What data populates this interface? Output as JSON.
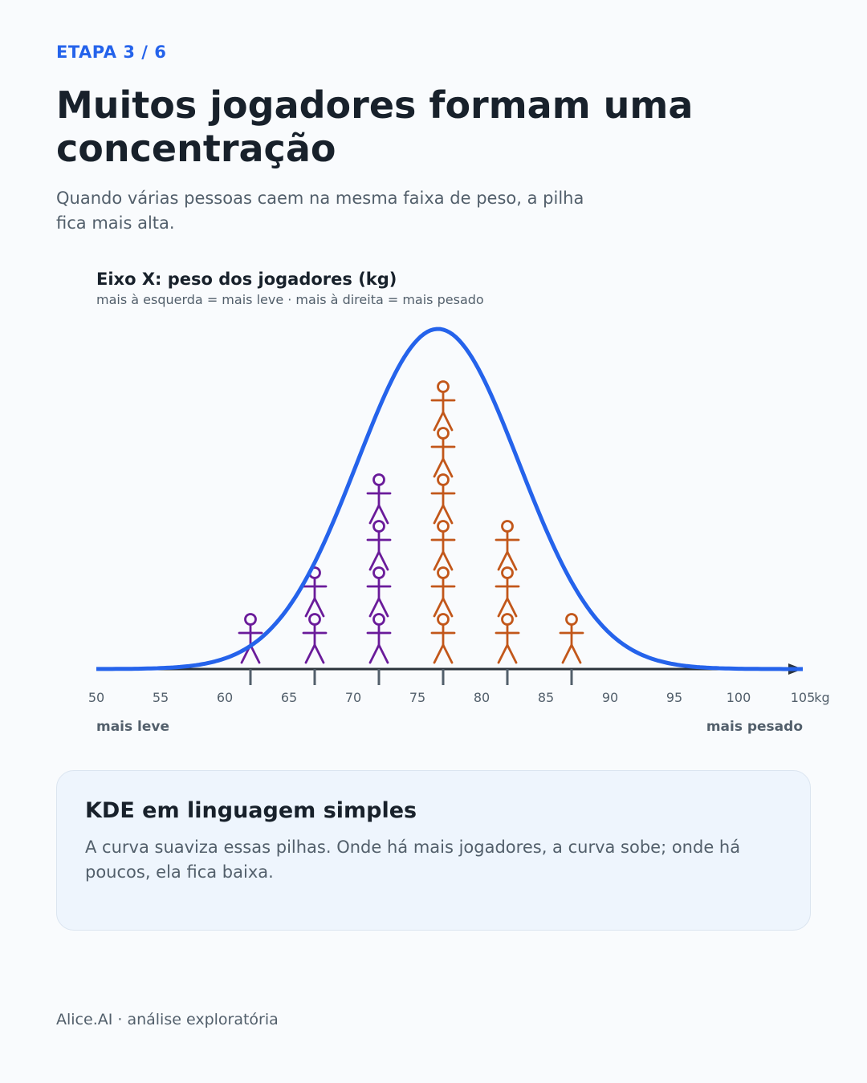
{
  "header": {
    "step": "ETAPA 3 / 6",
    "title": "Muitos jogadores formam uma concentração",
    "subtitle": "Quando várias pessoas caem na mesma faixa de peso, a pilha fica mais alta."
  },
  "chart_data": {
    "type": "dot-plot-with-kde",
    "axis_title": "Eixo X: peso dos jogadores (kg)",
    "axis_subtitle": "mais à esquerda = mais leve · mais à direita = mais pesado",
    "xlim": [
      50,
      105
    ],
    "x_ticks": [
      50,
      55,
      60,
      65,
      70,
      75,
      80,
      85,
      90,
      95,
      100,
      105
    ],
    "x_unit": "kg",
    "left_label": "mais leve",
    "right_label": "mais pesado",
    "stacks": [
      {
        "x": 62,
        "count": 1,
        "group": "light"
      },
      {
        "x": 67,
        "count": 2,
        "group": "light"
      },
      {
        "x": 72,
        "count": 4,
        "group": "light"
      },
      {
        "x": 77,
        "count": 6,
        "group": "heavy"
      },
      {
        "x": 82,
        "count": 3,
        "group": "heavy"
      },
      {
        "x": 87,
        "count": 1,
        "group": "heavy"
      }
    ],
    "kde": {
      "mean": 76.6,
      "sd": 6.3
    },
    "colors": {
      "light": "#6a1b9a",
      "heavy": "#c2571a",
      "curve": "#2563eb",
      "axis": "#2b333b",
      "tick": "#525f6b"
    }
  },
  "info_card": {
    "title": "KDE em linguagem simples",
    "body": "A curva suaviza essas pilhas. Onde há mais jogadores, a curva sobe; onde há poucos, ela fica baixa."
  },
  "footer": {
    "text": "Alice.AI · análise exploratória"
  }
}
